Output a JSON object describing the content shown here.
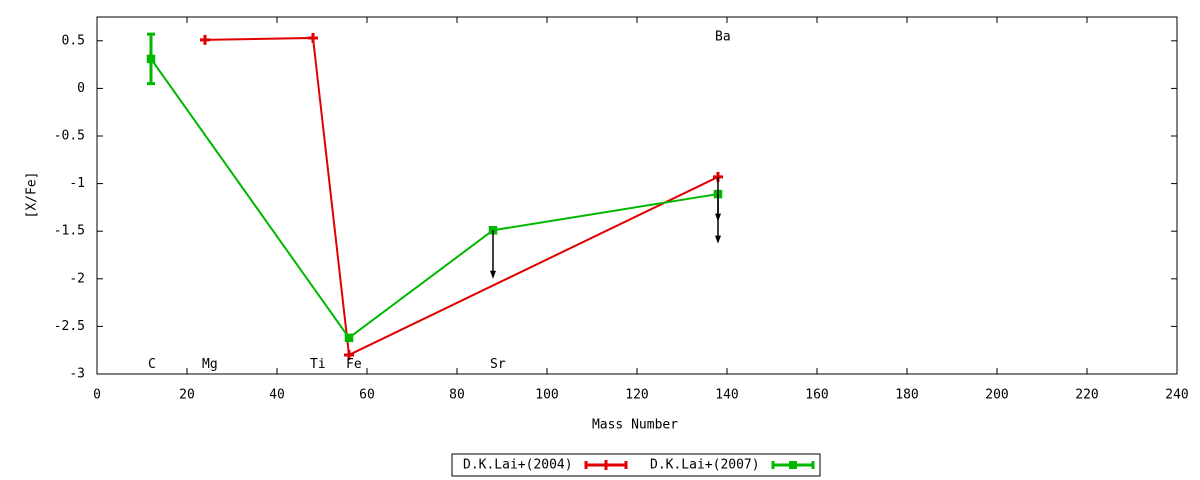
{
  "chart_data": {
    "type": "line",
    "xlabel": "Mass Number",
    "ylabel": "[X/Fe]",
    "xlim": [
      0,
      240
    ],
    "xticks": [
      0,
      20,
      40,
      60,
      80,
      100,
      120,
      140,
      160,
      180,
      200,
      220,
      240
    ],
    "ylim": [
      -3,
      0.75
    ],
    "yticks": [
      0.5,
      0,
      -0.5,
      -1,
      -1.5,
      -2,
      -2.5,
      -3
    ],
    "grid": false,
    "legend": "bottom",
    "series": [
      {
        "name": "D.K.Lai+(2004)",
        "color": "#e00000",
        "marker": "plus",
        "x": [
          24,
          48,
          56,
          138
        ],
        "values": [
          0.51,
          0.53,
          -2.8,
          -0.93
        ]
      },
      {
        "name": "D.K.Lai+(2007)",
        "color": "#00b800",
        "marker": "square",
        "x": [
          12,
          56,
          88,
          138
        ],
        "values": [
          0.31,
          -2.62,
          -1.49,
          -1.11
        ],
        "errors": [
          0.26,
          null,
          null,
          null
        ]
      }
    ],
    "arrows": [
      {
        "x": 88,
        "from": -1.49,
        "to": -2.0
      },
      {
        "x": 138,
        "from": -0.93,
        "to": -1.4
      },
      {
        "x": 138,
        "from": -1.11,
        "to": -1.63
      }
    ],
    "annotations": [
      {
        "text": "C",
        "x": 12,
        "y": -2.9
      },
      {
        "text": "Mg",
        "x": 24,
        "y": -2.9
      },
      {
        "text": "Ti",
        "x": 48,
        "y": -2.9
      },
      {
        "text": "Fe",
        "x": 56,
        "y": -2.9
      },
      {
        "text": "Sr",
        "x": 88,
        "y": -2.9
      },
      {
        "text": "Ba",
        "x": 138,
        "y": 0.54
      }
    ]
  }
}
